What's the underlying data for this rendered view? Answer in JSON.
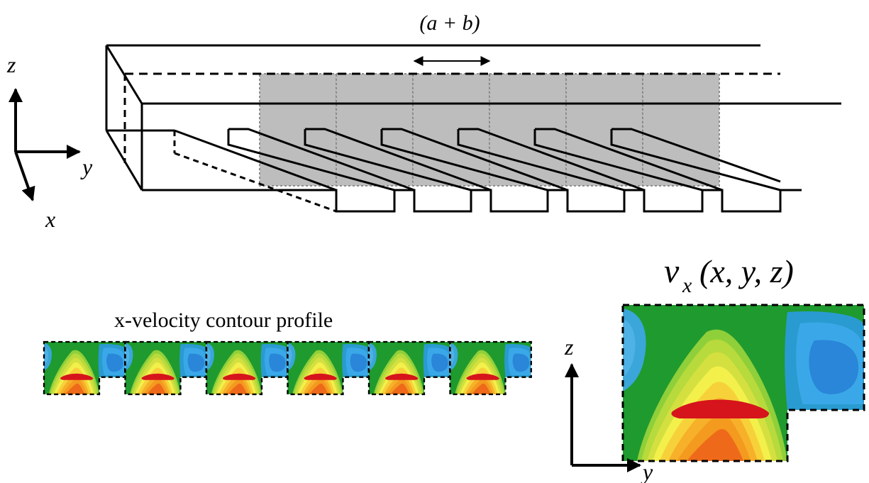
{
  "top_diagram": {
    "period_label": "(a + b)"
  },
  "axes_3d": {
    "z": "z",
    "y": "y",
    "x": "x"
  },
  "contour_strip": {
    "title": "x-velocity contour profile",
    "cell_count": 6
  },
  "zoom_panel": {
    "label_v": "v",
    "label_sub": "x",
    "label_args": "(x, y, z)",
    "axis_z": "z",
    "axis_y": "y"
  },
  "colors": {
    "line": "#000000",
    "gray_panel": "#bdbdbd",
    "gray_panel_border": "#8c8c8c",
    "contour": [
      "#2ca02c",
      "#3cb34a",
      "#8fcf3a",
      "#d4e040",
      "#f3f04b",
      "#f7c52e",
      "#f39a1f",
      "#ee6a1a",
      "#d6141c"
    ],
    "blue": [
      "#2f9fd6",
      "#3aa8e8",
      "#2a86d8"
    ]
  }
}
